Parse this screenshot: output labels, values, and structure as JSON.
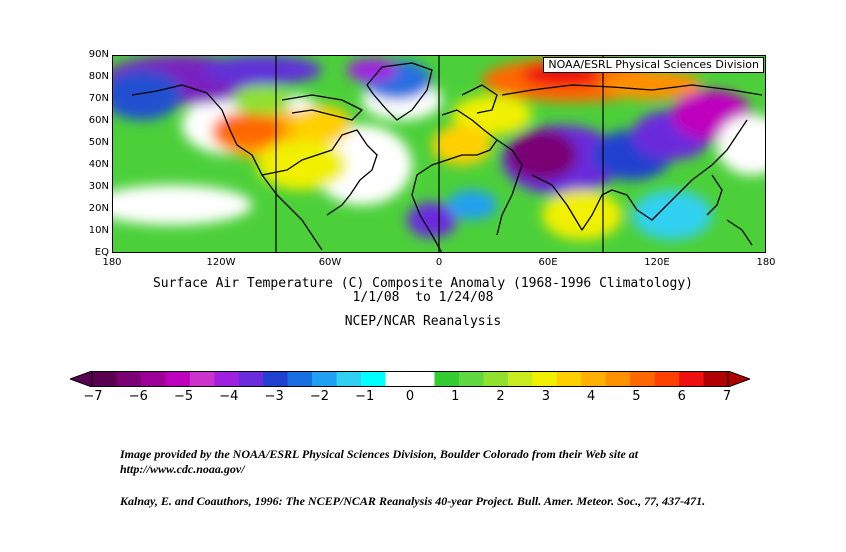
{
  "map": {
    "banner": "NOAA/ESRL Physical Sciences Division",
    "lat_labels": [
      "90N",
      "80N",
      "70N",
      "60N",
      "50N",
      "40N",
      "30N",
      "20N",
      "10N",
      "EQ"
    ],
    "lon_labels": [
      "180",
      "120W",
      "60W",
      "0",
      "60E",
      "120E",
      "180"
    ],
    "lat_range": [
      0,
      90
    ],
    "lon_range": [
      -180,
      180
    ],
    "projection": "cylindrical equidistant",
    "colors": {
      "ocean_neutral": "#ffffff",
      "coast": "#000000"
    }
  },
  "titles": {
    "line1": "Surface Air Temperature (C) Composite Anomaly (1968-1996 Climatology)",
    "line2": "1/1/08  to 1/24/08",
    "line3": "NCEP/NCAR Reanalysis"
  },
  "colorbar": {
    "labels": [
      "-7",
      "-6",
      "-5",
      "-4",
      "-3",
      "-2",
      "-1",
      "0",
      "1",
      "2",
      "3",
      "4",
      "5",
      "6",
      "7"
    ],
    "colors": [
      "#5a0050",
      "#7a0073",
      "#9c0096",
      "#be00be",
      "#cc33cc",
      "#a020e0",
      "#6a2cdc",
      "#2040d0",
      "#1870e0",
      "#20a0f0",
      "#30d0f0",
      "#00ffff",
      "#ffffff",
      "#ffffff",
      "#33cc33",
      "#60d840",
      "#90e030",
      "#c8ec20",
      "#f0f000",
      "#ffd000",
      "#ffb000",
      "#ff9000",
      "#ff6800",
      "#ff4000",
      "#ee1010",
      "#b00000"
    ]
  },
  "credits": {
    "line1": "Image provided by the NOAA/ESRL Physical Sciences Division, Boulder Colorado from their Web site at",
    "line2": "http://www.cdc.noaa.gov/",
    "line3": "Kalnay, E. and Coauthors, 1996: The NCEP/NCAR Reanalysis 40-year Project. Bull. Amer. Meteor. Soc., 77, 437-471."
  }
}
